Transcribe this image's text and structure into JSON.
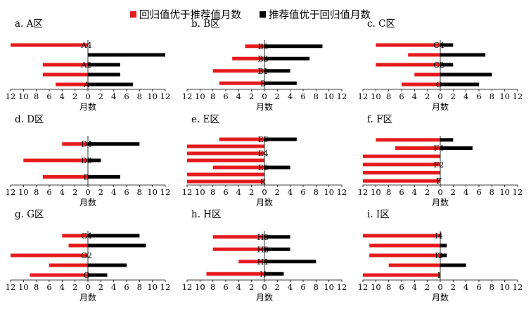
{
  "colors": {
    "red": "#e41a1c",
    "black": "#000000"
  },
  "legend": [
    {
      "label": "回归值优于推荐值月数",
      "color": "#e41a1c"
    },
    {
      "label": "推荐值优于回归值月数",
      "color": "#000000"
    }
  ],
  "chart_data": {
    "type": "bar",
    "orientation": "horizontal-butterfly",
    "xlabel": "月数",
    "ticks": [
      "12",
      "10",
      "8",
      "6",
      "4",
      "2",
      "0",
      "2",
      "4",
      "6",
      "8",
      "10",
      "12"
    ],
    "xlim": [
      -12,
      12
    ],
    "panels": [
      {
        "title": "a. A区",
        "rows": [
          {
            "label": "A4",
            "red": 12,
            "black": 0
          },
          {
            "label": "",
            "red": 0,
            "black": 12
          },
          {
            "label": "A2",
            "red": 7,
            "black": 5
          },
          {
            "label": "",
            "red": 7,
            "black": 5
          },
          {
            "label": "A",
            "red": 5,
            "black": 7
          }
        ]
      },
      {
        "title": "b. B区",
        "rows": [
          {
            "label": "B3",
            "red": 3,
            "black": 9
          },
          {
            "label": "B2",
            "red": 5,
            "black": 7
          },
          {
            "label": "B1",
            "red": 8,
            "black": 4
          },
          {
            "label": "B",
            "red": 7,
            "black": 5
          }
        ]
      },
      {
        "title": "c. C区",
        "rows": [
          {
            "label": "C4",
            "red": 10,
            "black": 2
          },
          {
            "label": "",
            "red": 5,
            "black": 7
          },
          {
            "label": "C2",
            "red": 10,
            "black": 2
          },
          {
            "label": "",
            "red": 4,
            "black": 8
          },
          {
            "label": "C",
            "red": 6,
            "black": 6
          }
        ]
      },
      {
        "title": "d. D区",
        "rows": [
          {
            "label": "D4",
            "red": 4,
            "black": 8
          },
          {
            "label": "D3",
            "red": 10,
            "black": 2
          },
          {
            "label": "D",
            "red": 7,
            "black": 5
          }
        ]
      },
      {
        "title": "e. E区",
        "rows": [
          {
            "label": "E6",
            "red": 7,
            "black": 5
          },
          {
            "label": "",
            "red": 12,
            "black": 0
          },
          {
            "label": "E4",
            "red": 12,
            "black": 0
          },
          {
            "label": "",
            "red": 12,
            "black": 0
          },
          {
            "label": "E2",
            "red": 8,
            "black": 4
          },
          {
            "label": "",
            "red": 12,
            "black": 0
          },
          {
            "label": "E",
            "red": 12,
            "black": 0
          }
        ]
      },
      {
        "title": "f. F区",
        "rows": [
          {
            "label": "",
            "red": 10,
            "black": 2
          },
          {
            "label": "F4",
            "red": 7,
            "black": 5
          },
          {
            "label": "",
            "red": 12,
            "black": 0
          },
          {
            "label": "F2",
            "red": 12,
            "black": 0
          },
          {
            "label": "",
            "red": 12,
            "black": 0
          },
          {
            "label": "F",
            "red": 12,
            "black": 0
          }
        ]
      },
      {
        "title": "g. G区",
        "rows": [
          {
            "label": "G4",
            "red": 4,
            "black": 8
          },
          {
            "label": "",
            "red": 3,
            "black": 9
          },
          {
            "label": "G2",
            "red": 12,
            "black": 0
          },
          {
            "label": "",
            "red": 6,
            "black": 6
          },
          {
            "label": "G",
            "red": 9,
            "black": 3
          }
        ]
      },
      {
        "title": "h. H区",
        "rows": [
          {
            "label": "H3",
            "red": 8,
            "black": 4
          },
          {
            "label": "H2",
            "red": 8,
            "black": 4
          },
          {
            "label": "H1",
            "red": 4,
            "black": 8
          },
          {
            "label": "H",
            "red": 9,
            "black": 3
          }
        ]
      },
      {
        "title": "i. I区",
        "rows": [
          {
            "label": "I4",
            "red": 12,
            "black": 0
          },
          {
            "label": "",
            "red": 11,
            "black": 1
          },
          {
            "label": "I2",
            "red": 11,
            "black": 1
          },
          {
            "label": "",
            "red": 8,
            "black": 4
          },
          {
            "label": "I",
            "red": 12,
            "black": 0
          }
        ]
      }
    ]
  }
}
